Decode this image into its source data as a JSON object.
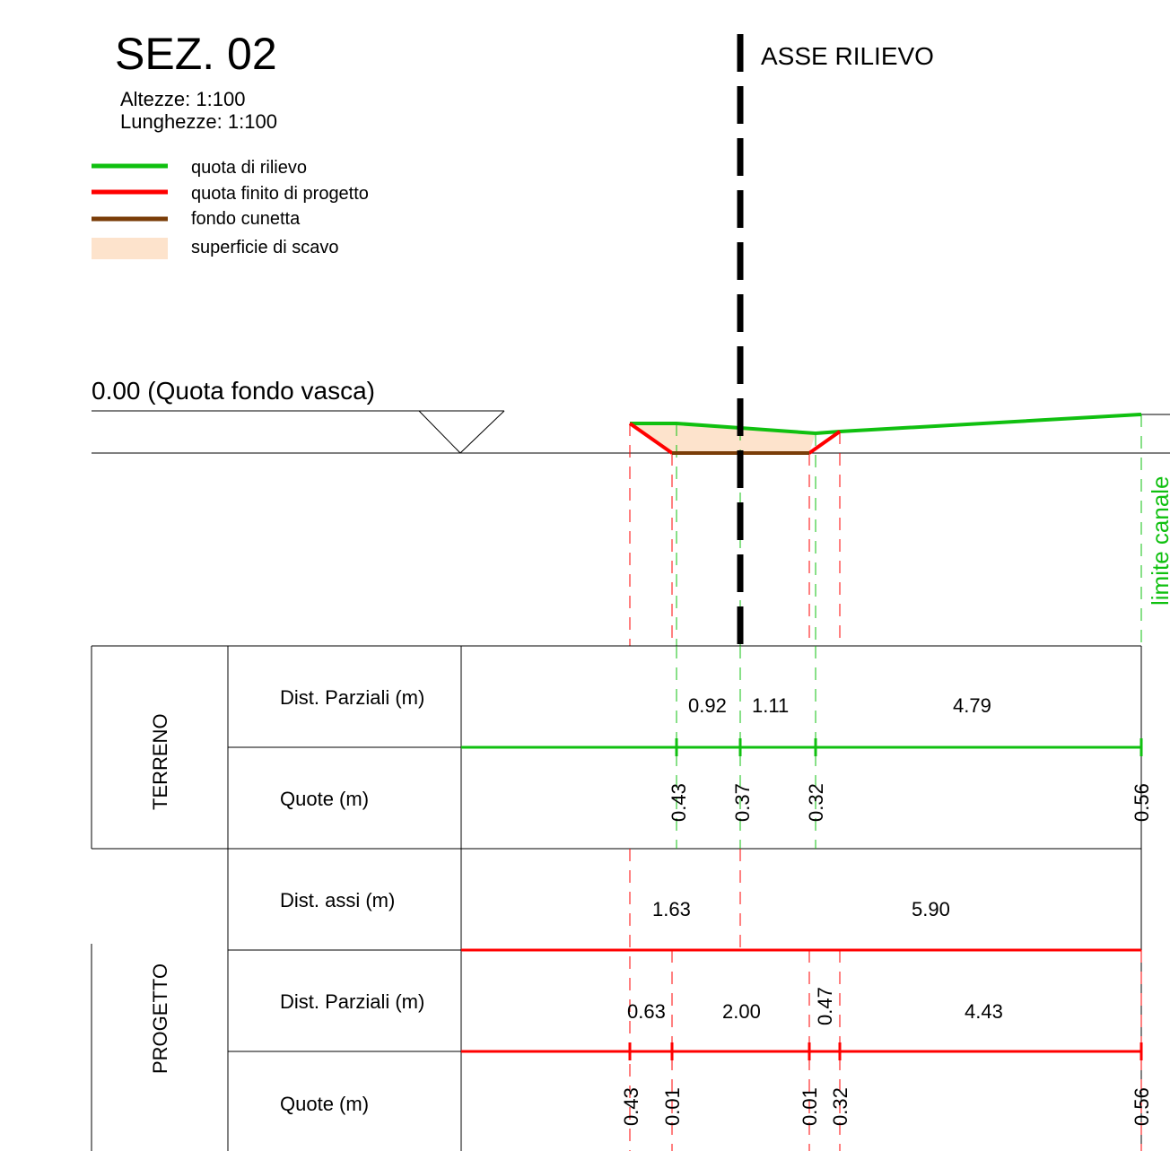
{
  "title": "SEZ. 02",
  "scale": {
    "heights": "Altezze:  1:100",
    "lengths": "Lunghezze: 1:100"
  },
  "legend": [
    {
      "label": "quota di rilievo",
      "color": "#10c010",
      "kind": "line"
    },
    {
      "label": "quota finito di progetto",
      "color": "#ff0000",
      "kind": "line"
    },
    {
      "label": "fondo cunetta",
      "color": "#7a3d08",
      "kind": "line"
    },
    {
      "label": "superficie di scavo",
      "color": "#fde3cc",
      "kind": "fill"
    }
  ],
  "axis_label": "ASSE RILIEVO",
  "datum_label": "0.00 (Quota fondo vasca)",
  "canal_limit_label": "limite canale",
  "colors": {
    "terrain": "#10c010",
    "project": "#ff0000",
    "ditch": "#7a3d08",
    "excavation": "#fde3cc",
    "axis": "#000000"
  },
  "table": {
    "sections": {
      "terreno": "TERRENO",
      "progetto": "PROGETTO"
    },
    "rows": {
      "terreno_dist": "Dist. Parziali (m)",
      "terreno_quote": "Quote (m)",
      "progetto_assi": "Dist. assi (m)",
      "progetto_dist": "Dist. Parziali (m)",
      "progetto_quote": "Quote (m)"
    },
    "terreno_dist_values": [
      "0.92",
      "1.11",
      "4.79"
    ],
    "terreno_quote_values": [
      "0.43",
      "0.37",
      "0.32",
      "0.56"
    ],
    "progetto_assi_values": [
      "1.63",
      "5.90"
    ],
    "progetto_dist_values": [
      "0.63",
      "2.00",
      "0.47",
      "4.43"
    ],
    "progetto_quote_values": [
      "0.43",
      "0.01",
      "0.01",
      "0.32",
      "0.56"
    ]
  }
}
